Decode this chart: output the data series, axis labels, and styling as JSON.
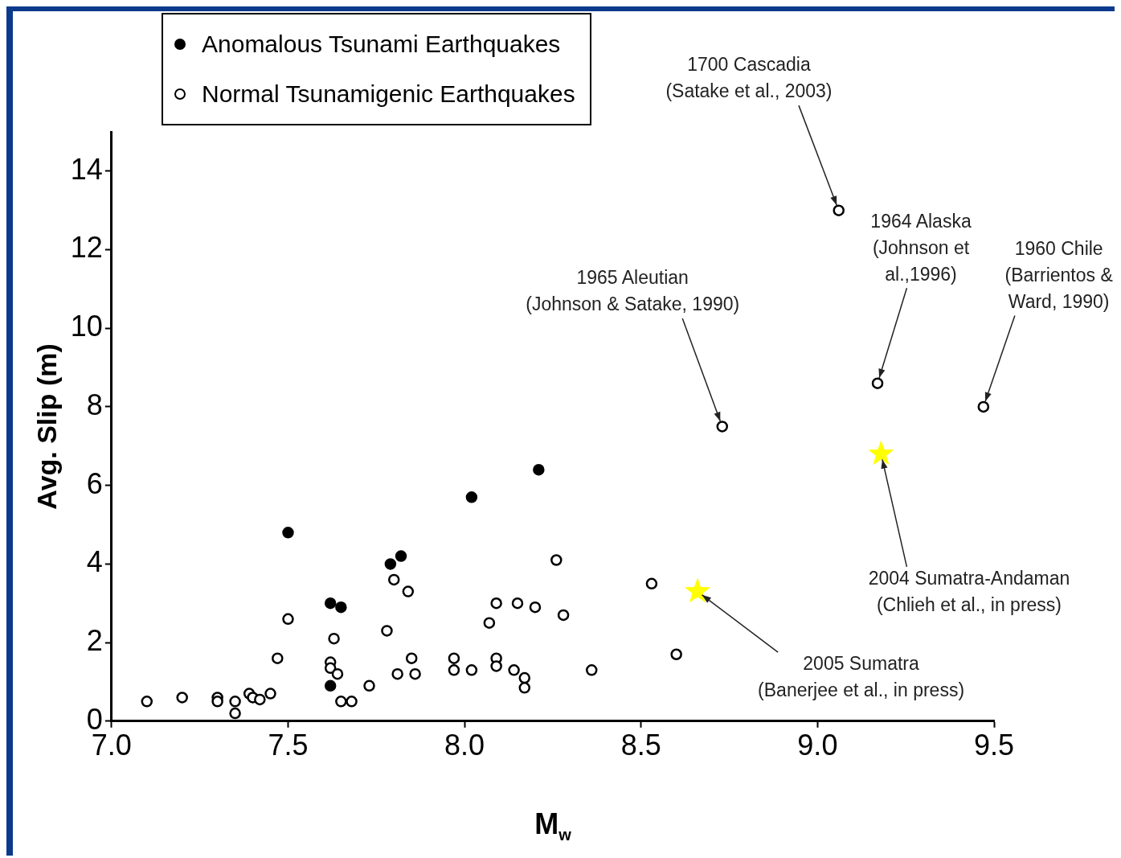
{
  "chart_data": {
    "type": "scatter",
    "xlabel": "M$_{w}$",
    "ylabel": "Avg. Slip (m)",
    "xlim": [
      7,
      9.5
    ],
    "xticks": [
      {
        "value": 7,
        "label": "7.0"
      },
      {
        "value": 7.5,
        "label": "7.5"
      },
      {
        "value": 8,
        "label": "8.0"
      },
      {
        "value": 8.5,
        "label": "8.5"
      },
      {
        "value": 9,
        "label": "9.0"
      },
      {
        "value": 9.5,
        "label": "9.5"
      }
    ],
    "ylim": [
      0,
      15
    ],
    "yticks": [
      0,
      2,
      4,
      6,
      8,
      10,
      12,
      14
    ],
    "grid": false,
    "legend": "top left",
    "marker": "circle",
    "series": [
      {
        "name": "Anomalous Tsunami Earthquakes",
        "color": "#000000",
        "x": [
          7.5,
          7.62,
          7.65,
          7.79,
          7.82,
          7.62,
          8.02,
          8.21
        ],
        "values": [
          4.8,
          3.0,
          2.9,
          4.0,
          4.2,
          0.9,
          5.7,
          6.4
        ]
      },
      {
        "name": "Normal Tsunamigenic Earthquakes",
        "color": "#ffffff",
        "x": [
          7.1,
          7.2,
          7.3,
          7.3,
          7.35,
          7.35,
          7.39,
          7.4,
          7.42,
          7.45,
          7.47,
          7.5,
          7.62,
          7.62,
          7.64,
          7.63,
          7.65,
          7.68,
          7.73,
          7.78,
          7.8,
          7.84,
          7.81,
          7.85,
          7.86,
          7.97,
          7.97,
          8.02,
          8.09,
          8.07,
          8.15,
          8.2,
          8.26,
          8.28,
          8.09,
          8.09,
          8.14,
          8.17,
          8.17,
          8.36,
          8.53,
          8.6,
          8.73,
          9.06,
          9.17,
          9.47
        ],
        "values": [
          0.5,
          0.6,
          0.6,
          0.5,
          0.2,
          0.5,
          0.7,
          0.6,
          0.55,
          0.7,
          1.6,
          2.6,
          1.5,
          1.35,
          1.2,
          2.1,
          0.5,
          0.5,
          0.9,
          2.3,
          3.6,
          3.3,
          1.2,
          1.6,
          1.2,
          1.6,
          1.3,
          1.3,
          3.0,
          2.5,
          3.0,
          2.9,
          4.1,
          2.7,
          1.6,
          1.4,
          1.3,
          1.1,
          0.85,
          1.3,
          3.5,
          1.7,
          7.5,
          13.0,
          8.6,
          8.0
        ]
      },
      {
        "color": "#ffff00",
        "marker": "star",
        "x": [
          8.66,
          9.18
        ],
        "values": [
          3.3,
          6.8
        ]
      }
    ],
    "annotations": [
      {
        "text": "1700 Cascadia (Satake et al., 2003)",
        "x": 9.06,
        "y": 13.0
      },
      {
        "text": "1964 Alaska (Johnson et al.,1996)",
        "x": 9.17,
        "y": 8.6
      },
      {
        "text": "1960 Chile (Barrientos & Ward, 1990)",
        "x": 9.47,
        "y": 8.0
      },
      {
        "text": "1965 Aleutian (Johnson & Satake, 1990)",
        "x": 8.73,
        "y": 7.5
      },
      {
        "text": "2004 Sumatra-Andaman (Chlieh et al., in press)",
        "x": 9.18,
        "y": 6.8
      },
      {
        "text": "2005 Sumatra (Banerjee et al., in press)",
        "x": 8.66,
        "y": 3.3
      }
    ]
  }
}
